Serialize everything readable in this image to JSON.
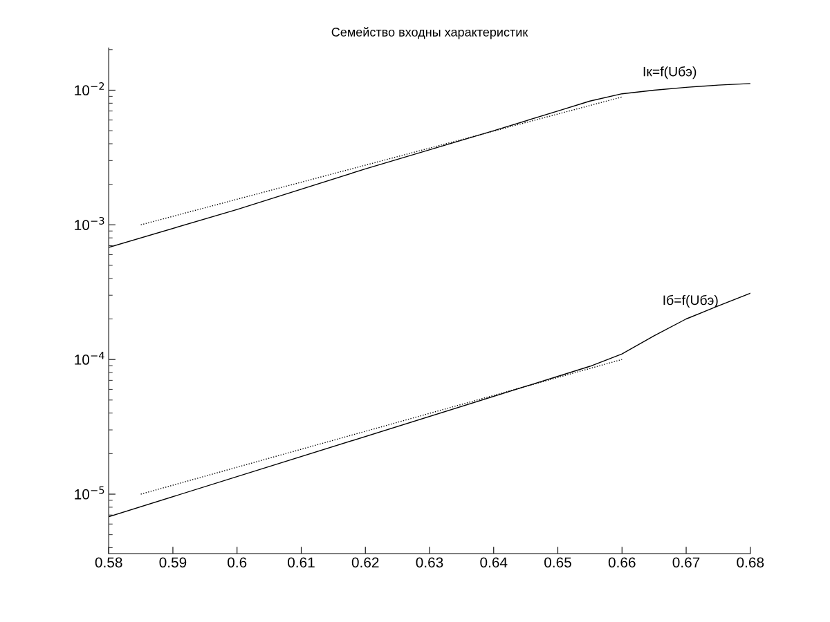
{
  "chart_data": {
    "type": "line",
    "title": "Семейство входны характеристик",
    "log": "y",
    "grid": false,
    "marker": "none",
    "xlim": [
      0.58,
      0.68
    ],
    "xticks": [
      0.58,
      0.59,
      0.6,
      0.61,
      0.62,
      0.63,
      0.64,
      0.65,
      0.66,
      0.67,
      0.68
    ],
    "ylim": [
      3.62e-06,
      0.0206
    ],
    "yticks": [
      {
        "value": 1e-05,
        "label": "10$^{−5}$"
      },
      {
        "value": 0.0001,
        "label": "10$^{−4}$"
      },
      {
        "value": 0.001,
        "label": "10$^{−3}$"
      },
      {
        "value": 0.01,
        "label": "10$^{−2}$"
      }
    ],
    "series": [
      {
        "color": "#000000",
        "line_style": "solid",
        "x": [
          0.58,
          0.6,
          0.62,
          0.64,
          0.65,
          0.655,
          0.66,
          0.665,
          0.67,
          0.675,
          0.68
        ],
        "values": [
          0.00068,
          0.0013,
          0.0026,
          0.005,
          0.007,
          0.0083,
          0.0094,
          0.01,
          0.0105,
          0.0109,
          0.0112
        ]
      },
      {
        "color": "#000000",
        "line_style": "dotted",
        "x": [
          0.585,
          0.66
        ],
        "values": [
          0.001,
          0.0089
        ]
      },
      {
        "color": "#000000",
        "line_style": "solid",
        "x": [
          0.58,
          0.655,
          0.66,
          0.665,
          0.67,
          0.675,
          0.68
        ],
        "values": [
          6.8e-06,
          8.9e-05,
          0.00011,
          0.00015,
          0.0002,
          0.00025,
          0.00031
        ]
      },
      {
        "color": "#000000",
        "line_style": "dotted",
        "x": [
          0.585,
          0.66
        ],
        "values": [
          1e-05,
          0.0001
        ]
      }
    ],
    "annotations": [
      "Iк=f(Uбэ)",
      "Iб=f(Uбэ)"
    ]
  }
}
